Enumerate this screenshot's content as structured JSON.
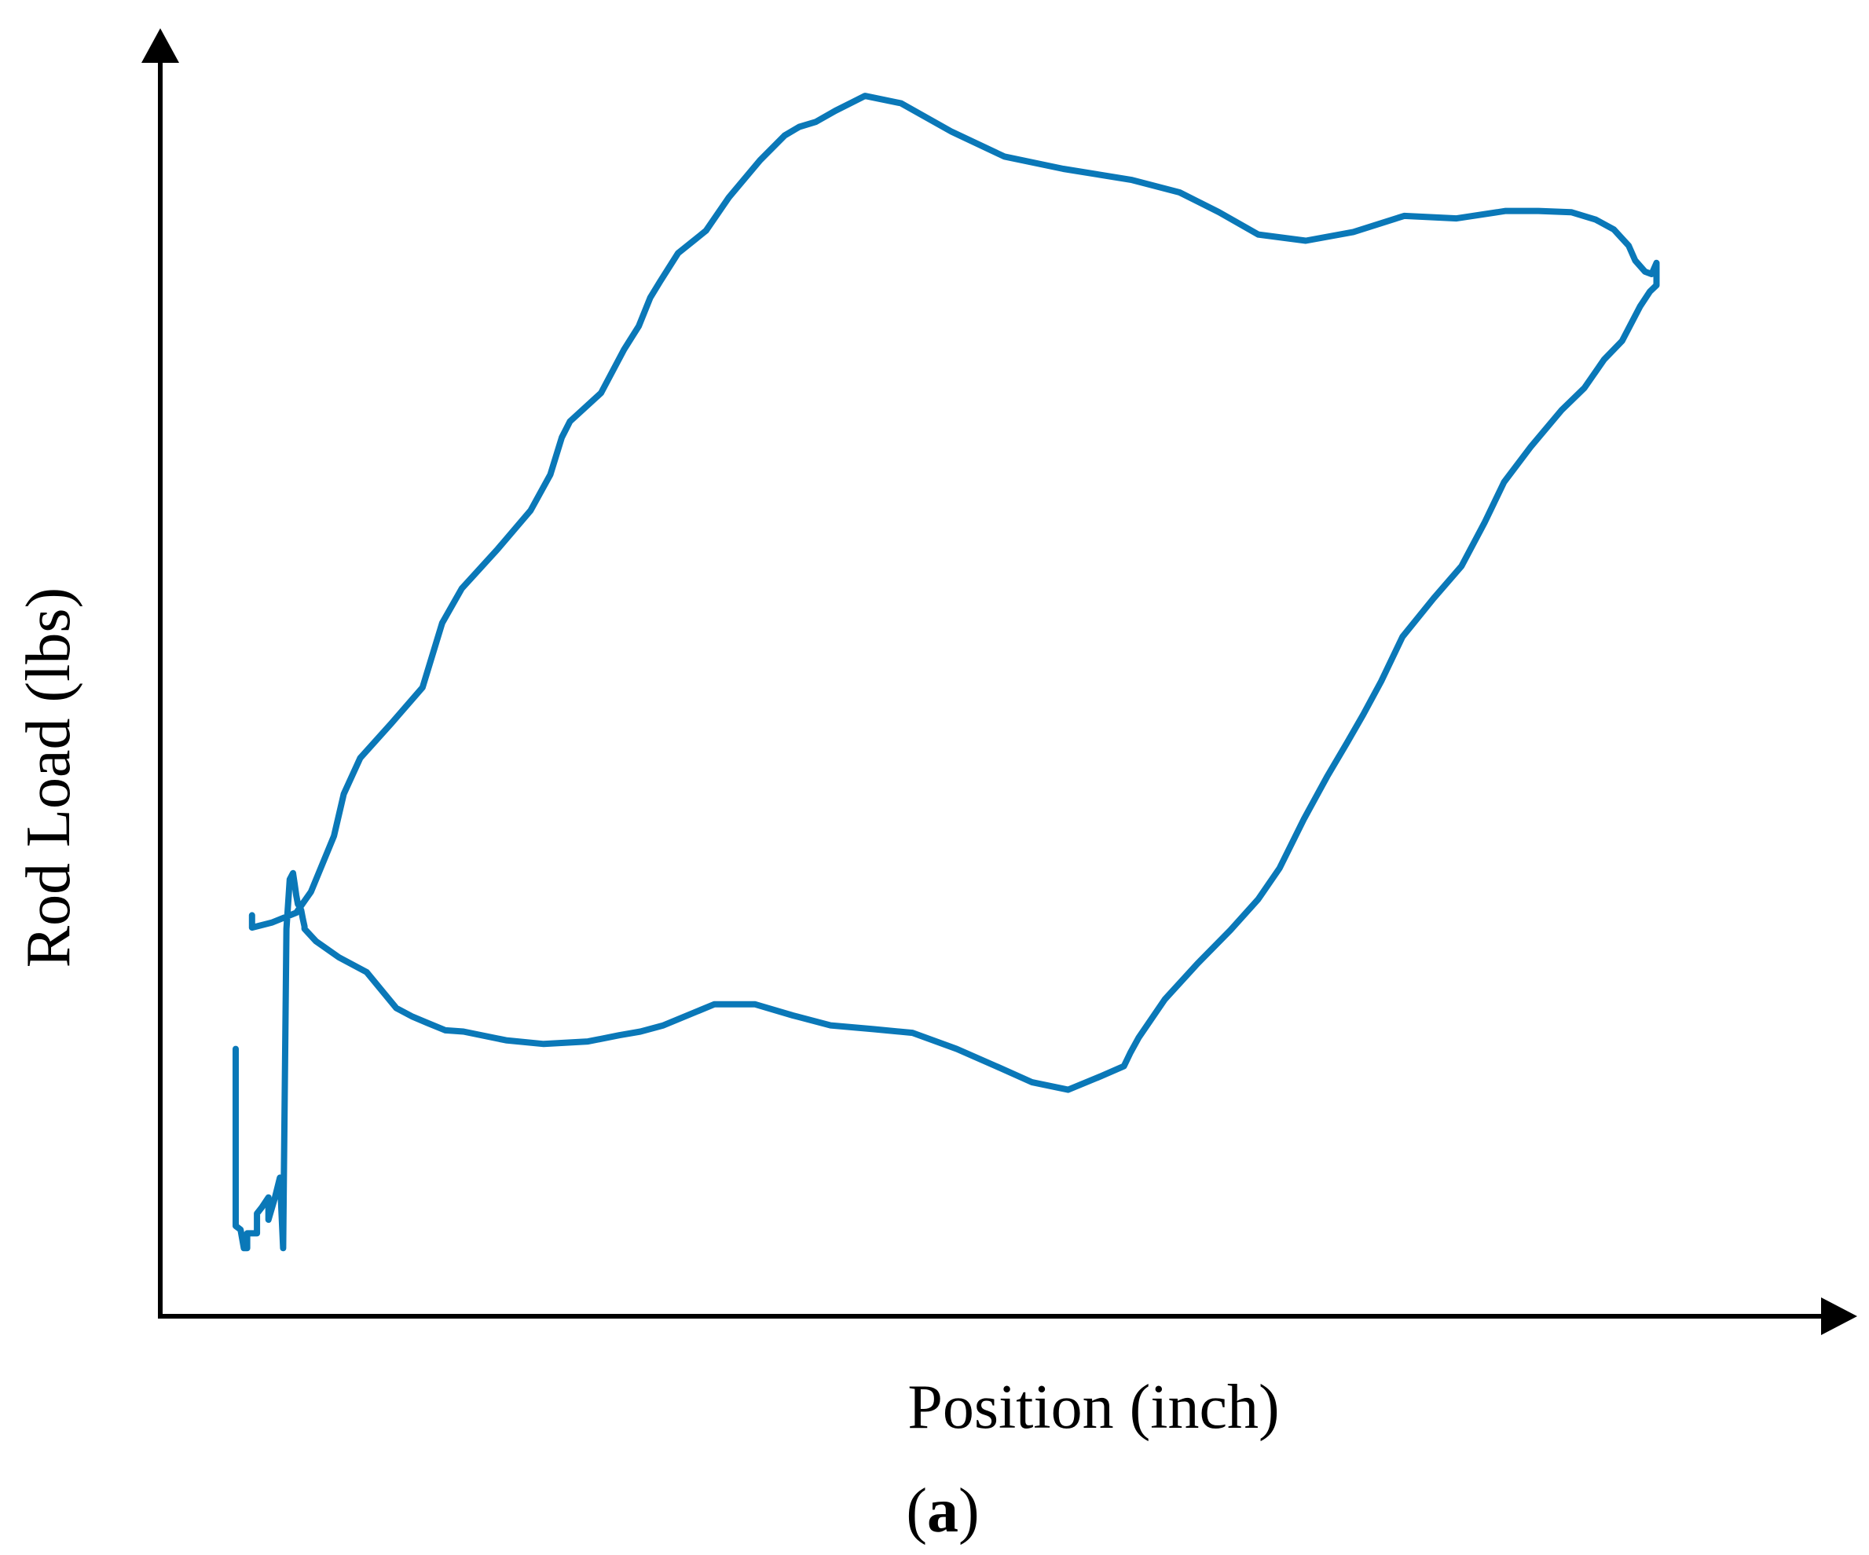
{
  "chart_data": {
    "type": "line",
    "title": "",
    "xlabel": "Position (inch)",
    "ylabel": "Rod Load (lbs)",
    "x_ticks_shown": false,
    "y_ticks_shown": false,
    "grid": false,
    "legend": "none",
    "xlim": [
      0,
      100
    ],
    "ylim": [
      0,
      100
    ],
    "series": [
      {
        "color": "#0a78b8",
        "x": [
          4.6,
          4.6,
          4.9,
          5.1,
          5.3,
          5.3,
          5.9,
          5.9,
          6.2,
          6.6,
          6.6,
          7.0,
          7.3,
          7.5,
          7.7,
          7.9,
          8.1,
          8.2,
          8.3,
          8.4,
          8.5,
          8.6,
          8.7,
          8.8,
          8.8,
          9.5,
          10.9,
          12.6,
          14.4,
          15.4,
          16.3,
          17.4,
          18.5,
          21.1,
          23.4,
          26.1,
          28.0,
          29.3,
          30.7,
          33.8,
          36.3,
          38.6,
          40.9,
          43.5,
          45.9,
          48.6,
          51.0,
          53.2,
          55.4,
          57.4,
          58.8,
          59.2,
          59.7,
          61.3,
          63.3,
          65.3,
          67.0,
          68.3,
          69.8,
          71.2,
          72.4,
          73.4,
          74.5,
          75.8,
          77.7,
          79.4,
          80.8,
          82.0,
          83.6,
          85.5,
          86.9,
          88.1,
          89.2,
          90.3,
          90.9,
          91.3,
          91.3,
          91.3,
          91.0,
          90.6,
          90.0,
          89.6,
          88.7,
          87.6,
          86.1,
          84.1,
          82.1,
          79.1,
          75.9,
          72.8,
          69.9,
          67.0,
          64.6,
          62.2,
          59.3,
          55.1,
          51.5,
          48.3,
          45.2,
          43.0,
          41.2,
          40.0,
          39.0,
          38.1,
          36.6,
          34.7,
          33.3,
          31.6,
          30.5,
          29.9,
          29.2,
          28.3,
          26.9,
          25.0,
          24.5,
          23.8,
          22.6,
          20.6,
          18.4,
          17.2,
          16.0,
          14.1,
          12.2,
          11.2,
          10.6,
          9.2,
          8.3,
          6.8,
          5.6,
          5.6
        ],
        "y": [
          21.6,
          7.3,
          7.0,
          5.5,
          5.5,
          6.7,
          6.7,
          8.3,
          8.8,
          9.6,
          7.8,
          9.6,
          11.2,
          5.5,
          31.3,
          35.3,
          35.8,
          34.9,
          34.0,
          33.3,
          33.1,
          32.8,
          32.1,
          31.5,
          31.3,
          30.3,
          29.0,
          27.8,
          24.9,
          24.2,
          23.7,
          23.1,
          23.0,
          22.3,
          22.0,
          22.2,
          22.7,
          23.0,
          23.5,
          25.2,
          25.2,
          24.3,
          23.5,
          23.2,
          22.9,
          21.6,
          20.2,
          18.9,
          18.3,
          19.4,
          20.2,
          21.3,
          22.5,
          25.6,
          28.5,
          31.2,
          33.7,
          36.2,
          40.2,
          43.6,
          46.3,
          48.6,
          51.3,
          54.9,
          58.0,
          60.6,
          64.1,
          67.4,
          70.2,
          73.2,
          75.0,
          77.3,
          78.8,
          81.6,
          82.8,
          83.3,
          84.0,
          85.1,
          84.2,
          84.4,
          85.3,
          86.5,
          87.8,
          88.6,
          89.2,
          89.3,
          89.3,
          88.7,
          88.9,
          87.6,
          86.9,
          87.4,
          89.2,
          90.8,
          91.8,
          92.7,
          93.7,
          95.7,
          98.0,
          98.6,
          97.4,
          96.5,
          96.1,
          95.4,
          93.4,
          90.4,
          87.7,
          85.9,
          83.6,
          82.3,
          80.0,
          78.1,
          74.6,
          72.3,
          71.0,
          68.0,
          65.1,
          62.0,
          58.8,
          56.0,
          50.8,
          47.9,
          45.1,
          42.2,
          38.8,
          34.3,
          32.6,
          31.8,
          31.4,
          32.4
        ]
      }
    ]
  },
  "panel_label": {
    "open": "(",
    "letter": "a",
    "close": ")"
  }
}
